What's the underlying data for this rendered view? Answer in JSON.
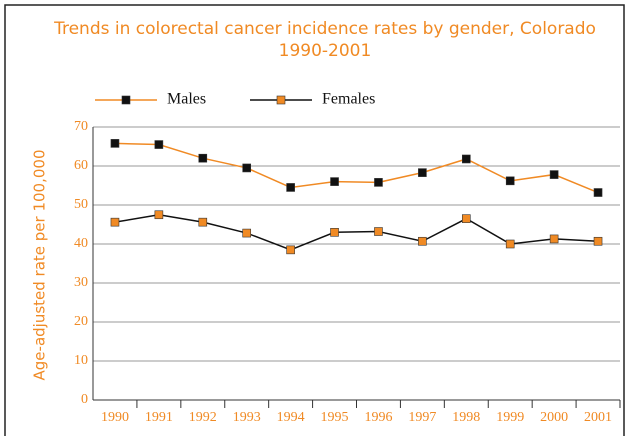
{
  "chart_data": {
    "type": "line",
    "title": "Trends in colorectal cancer incidence rates by gender, Colorado 1990-2001",
    "y_label": "Age-adjusted rate per 100,000",
    "categories": [
      "1990",
      "1991",
      "1992",
      "1993",
      "1994",
      "1995",
      "1996",
      "1997",
      "1998",
      "1999",
      "2000",
      "2001"
    ],
    "series": [
      {
        "name": "Males",
        "color": "#f08a24",
        "marker_color": "#111111",
        "values": [
          65.8,
          65.5,
          62,
          59.5,
          54.5,
          56,
          55.8,
          58.3,
          61.8,
          56.2,
          57.8,
          53.2
        ]
      },
      {
        "name": "Females",
        "color": "#111111",
        "marker_color": "#f08a24",
        "values": [
          45.6,
          47.5,
          45.6,
          42.8,
          38.5,
          43,
          43.2,
          40.7,
          46.5,
          40,
          41.3,
          40.7
        ]
      }
    ],
    "ylim": [
      0,
      70
    ],
    "yticks": [
      0,
      10,
      20,
      30,
      40,
      50,
      60,
      70
    ],
    "grid": true
  }
}
